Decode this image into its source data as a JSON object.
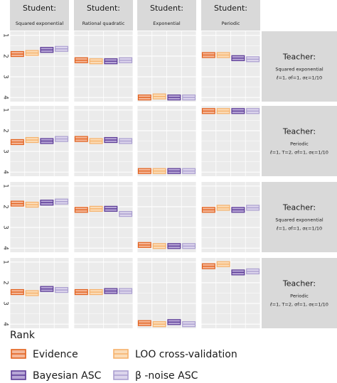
{
  "chart_data": {
    "type": "bar",
    "ylabel_ticks": [
      "1",
      "2",
      "3",
      "4"
    ],
    "yrange": [
      0.8,
      4.2
    ],
    "grid": true,
    "legend_position": "bottom",
    "students": [
      {
        "title": "Student:",
        "subtitle": "Squared exponential"
      },
      {
        "title": "Student:",
        "subtitle": "Rational quadratic"
      },
      {
        "title": "Student:",
        "subtitle": "Exponential"
      },
      {
        "title": "Student:",
        "subtitle": "Periodic"
      }
    ],
    "teachers": [
      {
        "title": "Teacher:",
        "subtitle": "Squared exponential",
        "params": "ℓ=1, σf=1, σε=1/10"
      },
      {
        "title": "Teacher:",
        "subtitle": "Periodic",
        "params": "ℓ=1, T=2, σf=1, σε=1/10"
      },
      {
        "title": "Teacher:",
        "subtitle": "Squared exponential",
        "params": "ℓ=1, σf=1, σε=1/10"
      },
      {
        "title": "Teacher:",
        "subtitle": "Periodic",
        "params": "ℓ=1, T=2, σf=1, σε=1/10"
      }
    ],
    "legend_title": "Rank",
    "series": [
      {
        "name": "Evidence",
        "color": "#e2601c",
        "fill": "#f4b89a"
      },
      {
        "name": "LOO cross-validation",
        "color": "#f6b16a",
        "fill": "#fbdcb8"
      },
      {
        "name": "Bayesian ASC",
        "color": "#5b3a96",
        "fill": "#b7a6d6"
      },
      {
        "name": "β -noise ASC",
        "color": "#ab9fd0",
        "fill": "#dcd5ec"
      }
    ],
    "ranks": [
      [
        [
          1.9,
          1.85,
          1.7,
          1.65
        ],
        [
          2.2,
          2.25,
          2.25,
          2.2
        ],
        [
          4.0,
          3.95,
          4.0,
          4.0
        ],
        [
          1.95,
          1.95,
          2.1,
          2.15
        ]
      ],
      [
        [
          2.55,
          2.45,
          2.5,
          2.4
        ],
        [
          2.4,
          2.5,
          2.45,
          2.5
        ],
        [
          3.95,
          3.95,
          3.95,
          3.95
        ],
        [
          1.05,
          1.05,
          1.05,
          1.05
        ]
      ],
      [
        [
          1.85,
          1.9,
          1.8,
          1.75
        ],
        [
          2.15,
          2.1,
          2.1,
          2.35
        ],
        [
          3.85,
          3.9,
          3.9,
          3.9
        ],
        [
          2.15,
          2.05,
          2.15,
          2.05
        ]
      ],
      [
        [
          2.45,
          2.5,
          2.3,
          2.35
        ],
        [
          2.45,
          2.45,
          2.4,
          2.4
        ],
        [
          3.95,
          4.0,
          3.9,
          4.0
        ],
        [
          1.2,
          1.1,
          1.5,
          1.45
        ]
      ]
    ]
  }
}
